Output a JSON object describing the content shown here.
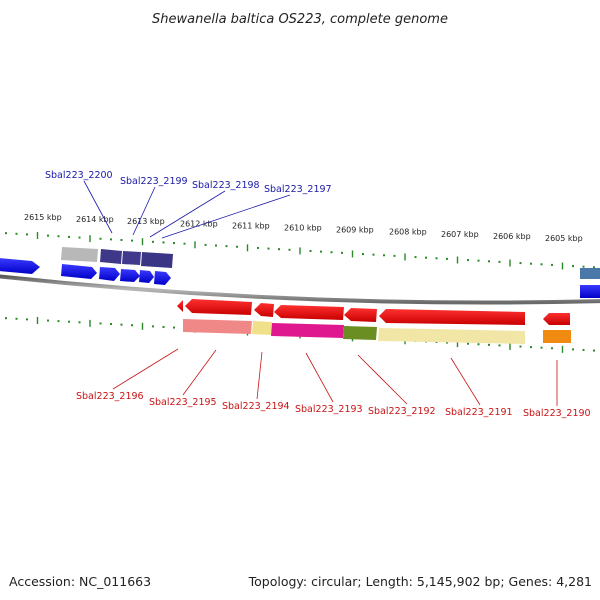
{
  "title": "Shewanella baltica OS223, complete genome",
  "footer": {
    "accession": "Accession: NC_011663",
    "summary": "Topology: circular; Length: 5,145,902 bp; Genes: 4,281"
  },
  "ticks": [
    "2615 kbp",
    "2614 kbp",
    "2613 kbp",
    "2612 kbp",
    "2611 kbp",
    "2610 kbp",
    "2609 kbp",
    "2608 kbp",
    "2607 kbp",
    "2606 kbp",
    "2605 kbp"
  ],
  "forward_labels": [
    "Sbal223_2200",
    "Sbal223_2199",
    "Sbal223_2198",
    "Sbal223_2197"
  ],
  "reverse_labels": [
    "Sbal223_2196",
    "Sbal223_2195",
    "Sbal223_2194",
    "Sbal223_2193",
    "Sbal223_2192",
    "Sbal223_2191",
    "Sbal223_2190"
  ],
  "colors": {
    "forward_label": "#1a1aaa",
    "reverse_label": "#c81414",
    "backbone": "#8a8a8a",
    "tick": "#2a8a2a",
    "forward_gene": "#1515e0",
    "reverse_gene": "#e01010"
  }
}
